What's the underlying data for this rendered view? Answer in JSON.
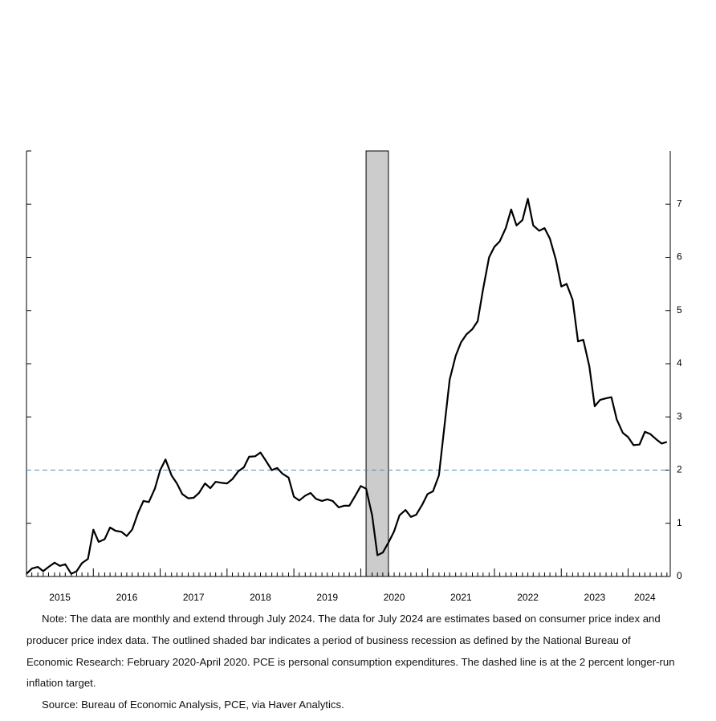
{
  "chart_data": {
    "type": "line",
    "x": [
      2015,
      2015.08,
      2015.17,
      2015.25,
      2015.33,
      2015.42,
      2015.5,
      2015.58,
      2015.67,
      2015.75,
      2015.83,
      2015.92,
      2016,
      2016.08,
      2016.17,
      2016.25,
      2016.33,
      2016.42,
      2016.5,
      2016.58,
      2016.67,
      2016.75,
      2016.83,
      2016.92,
      2017,
      2017.08,
      2017.17,
      2017.25,
      2017.33,
      2017.42,
      2017.5,
      2017.58,
      2017.67,
      2017.75,
      2017.83,
      2017.92,
      2018,
      2018.08,
      2018.17,
      2018.25,
      2018.33,
      2018.42,
      2018.5,
      2018.58,
      2018.67,
      2018.75,
      2018.83,
      2018.92,
      2019,
      2019.08,
      2019.17,
      2019.25,
      2019.33,
      2019.42,
      2019.5,
      2019.58,
      2019.67,
      2019.75,
      2019.83,
      2019.92,
      2020,
      2020.08,
      2020.17,
      2020.25,
      2020.33,
      2020.42,
      2020.5,
      2020.58,
      2020.67,
      2020.75,
      2020.83,
      2020.92,
      2021,
      2021.08,
      2021.17,
      2021.25,
      2021.33,
      2021.42,
      2021.5,
      2021.58,
      2021.67,
      2021.75,
      2021.83,
      2021.92,
      2022,
      2022.08,
      2022.17,
      2022.25,
      2022.33,
      2022.42,
      2022.5,
      2022.58,
      2022.67,
      2022.75,
      2022.83,
      2022.92,
      2023,
      2023.08,
      2023.17,
      2023.25,
      2023.33,
      2023.42,
      2023.5,
      2023.58,
      2023.67,
      2023.75,
      2023.83,
      2023.92,
      2024,
      2024.08,
      2024.17,
      2024.25,
      2024.33,
      2024.42,
      2024.5,
      2024.58
    ],
    "series": [
      {
        "color": "#000000",
        "values": [
          0.05,
          0.15,
          0.18,
          0.1,
          0.18,
          0.26,
          0.2,
          0.23,
          0.05,
          0.1,
          0.25,
          0.33,
          0.88,
          0.65,
          0.7,
          0.92,
          0.86,
          0.84,
          0.76,
          0.88,
          1.2,
          1.42,
          1.4,
          1.65,
          2.0,
          2.2,
          1.9,
          1.75,
          1.55,
          1.47,
          1.48,
          1.57,
          1.75,
          1.66,
          1.78,
          1.76,
          1.75,
          1.83,
          1.98,
          2.05,
          2.25,
          2.26,
          2.33,
          2.18,
          2.0,
          2.04,
          1.93,
          1.86,
          1.5,
          1.43,
          1.52,
          1.57,
          1.46,
          1.42,
          1.45,
          1.42,
          1.3,
          1.33,
          1.33,
          1.52,
          1.7,
          1.65,
          1.15,
          0.4,
          0.45,
          0.65,
          0.85,
          1.15,
          1.25,
          1.12,
          1.16,
          1.35,
          1.55,
          1.6,
          1.9,
          2.8,
          3.7,
          4.15,
          4.4,
          4.55,
          4.65,
          4.8,
          5.4,
          6.0,
          6.2,
          6.3,
          6.55,
          6.9,
          6.6,
          6.7,
          7.1,
          6.6,
          6.5,
          6.55,
          6.35,
          5.95,
          5.45,
          5.5,
          5.2,
          4.42,
          4.45,
          3.95,
          3.2,
          3.32,
          3.35,
          3.37,
          2.95,
          2.7,
          2.62,
          2.47,
          2.48,
          2.72,
          2.68,
          2.58,
          2.5,
          2.53
        ]
      }
    ],
    "xlim": [
      2015,
      2024.63
    ],
    "xticks": [
      {
        "value": 2015.5,
        "label": "2015"
      },
      {
        "value": 2016.5,
        "label": "2016"
      },
      {
        "value": 2017.5,
        "label": "2017"
      },
      {
        "value": 2018.5,
        "label": "2018"
      },
      {
        "value": 2019.5,
        "label": "2019"
      },
      {
        "value": 2020.5,
        "label": "2020"
      },
      {
        "value": 2021.5,
        "label": "2021"
      },
      {
        "value": 2022.5,
        "label": "2022"
      },
      {
        "value": 2023.5,
        "label": "2023"
      },
      {
        "value": 2024.25,
        "label": "2024"
      }
    ],
    "ylim": [
      0,
      8
    ],
    "yticks": [
      0,
      1,
      2,
      3,
      4,
      5,
      6,
      7
    ],
    "reference_line": {
      "value": 2,
      "color": "#4a90c0"
    },
    "shaded": {
      "from": 2020.08,
      "to": 2020.33,
      "color": "#cccccc"
    },
    "note": "Note: The data are monthly and extend through July 2024. The data for July 2024 are estimates based on consumer price index and producer price index data. The outlined shaded bar indicates a period of business recession as defined by the National Bureau of Economic Research: February 2020-April 2020. PCE is personal consumption expenditures. The dashed line is at the 2 percent longer-run inflation target.",
    "source": "Source: Bureau of Economic Analysis, PCE, via Haver Analytics."
  }
}
